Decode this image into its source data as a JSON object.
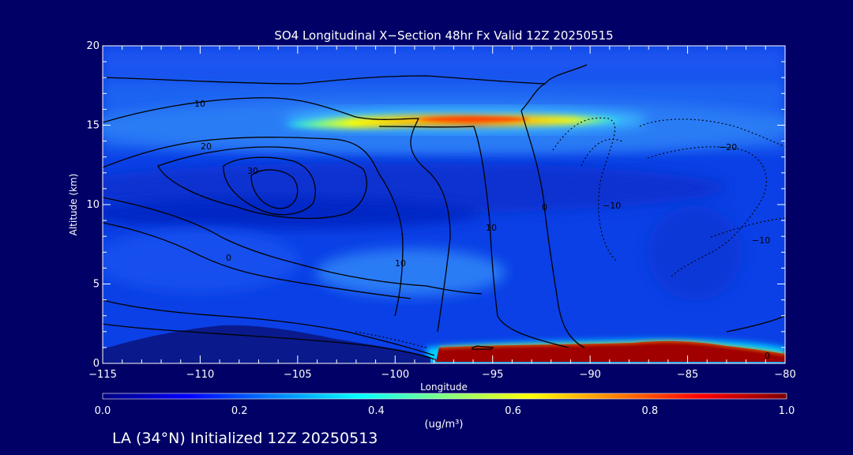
{
  "chart_data": {
    "type": "heatmap",
    "title": "SO4 Longitudinal X−Section 48hr  Fx Valid 12Z 20250515",
    "xlabel": "Longitude",
    "ylabel": "Altitude (km)",
    "xlim": [
      -115,
      -80
    ],
    "ylim": [
      0,
      20
    ],
    "x_major_ticks": [
      -115,
      -110,
      -105,
      -100,
      -95,
      -90,
      -85,
      -80
    ],
    "x_tick_labels": [
      "−115",
      "−110",
      "−105",
      "−100",
      "−95",
      "−90",
      "−85",
      "−80"
    ],
    "y_major_ticks": [
      0,
      5,
      10,
      15,
      20
    ],
    "y_tick_labels": [
      "0",
      "5",
      "10",
      "15",
      "20"
    ],
    "colorbar": {
      "range": [
        0.0,
        1.0
      ],
      "ticks": [
        0.0,
        0.2,
        0.4,
        0.6,
        0.8,
        1.0
      ],
      "tick_labels": [
        "0.0",
        "0.2",
        "0.4",
        "0.6",
        "0.8",
        "1.0"
      ],
      "units": "(ug/m³)"
    },
    "colormap_stops": [
      "#00007f",
      "#0000ff",
      "#0080ff",
      "#00ffff",
      "#80ff80",
      "#ffff00",
      "#ff8000",
      "#ff0000",
      "#7f0000"
    ],
    "features": [
      {
        "name": "upper plume",
        "lon_range": [
          -102,
          -91
        ],
        "alt_km": 15.1,
        "peak_value": 0.75
      },
      {
        "name": "surface layer",
        "lon_range": [
          -97.5,
          -80
        ],
        "alt_km": 0.6,
        "peak_value": 1.0
      }
    ],
    "contour_labels": [
      "10",
      "20",
      "30",
      "0",
      "10",
      "10",
      "0",
      "−20",
      "−10",
      "−10",
      "0"
    ],
    "footer": "LA (34°N) Initialized 12Z 20250513"
  },
  "colors": {
    "background": "#000066",
    "text": "#ffffff",
    "contour": "#000000",
    "terrain": "#0a1a8c"
  }
}
